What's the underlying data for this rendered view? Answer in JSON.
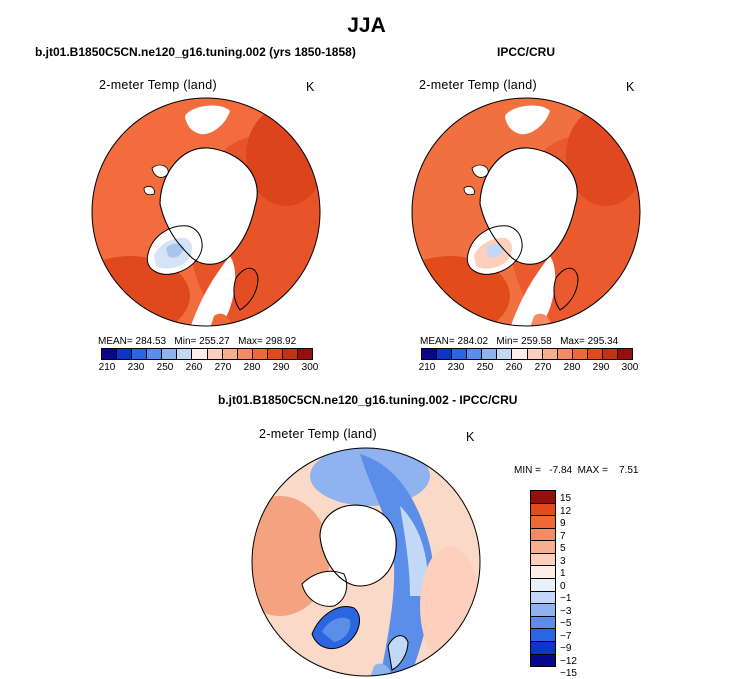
{
  "page": {
    "title": "JJA"
  },
  "colors": {
    "scale": [
      "#08088c",
      "#0d35c8",
      "#2a66e0",
      "#5a8ee8",
      "#8fb3ef",
      "#c2d8f6",
      "#fdeee6",
      "#fcd0bc",
      "#f9ae90",
      "#f68a62",
      "#ef6838",
      "#e24c1c",
      "#c33414",
      "#95100d"
    ],
    "diff_scale": [
      "#08088c",
      "#0d35c8",
      "#2a66e0",
      "#5a8ee8",
      "#8fb3ef",
      "#c2d8f6",
      "#e9f1fb",
      "#fdeee6",
      "#fcd0bc",
      "#f9ae90",
      "#f68a62",
      "#ef6838",
      "#e24c1c",
      "#95100d"
    ]
  },
  "panels": [
    {
      "heading": "b.jt01.B1850C5CN.ne120_g16.tuning.002 (yrs 1850-1858)",
      "variable": "2-meter Temp (land)",
      "units": "K",
      "stats": "MEAN= 284.53   Min= 255.27   Max= 298.92",
      "ticks": [
        "210",
        "230",
        "250",
        "260",
        "270",
        "280",
        "290",
        "300"
      ]
    },
    {
      "heading": "IPCC/CRU",
      "variable": "2-meter Temp (land)",
      "units": "K",
      "stats": "MEAN= 284.02   Min= 259.58   Max= 295.34",
      "ticks": [
        "210",
        "230",
        "250",
        "260",
        "270",
        "280",
        "290",
        "300"
      ]
    }
  ],
  "difference": {
    "heading": "b.jt01.B1850C5CN.ne120_g16.tuning.002 - IPCC/CRU",
    "variable": "2-meter Temp (land)",
    "units": "K",
    "stats": "MIN =   -7.84  MAX =    7.51",
    "labels": [
      "15",
      "12",
      "9",
      "7",
      "5",
      "3",
      "1",
      "0",
      "−1",
      "−3",
      "−5",
      "−7",
      "−9",
      "−12",
      "−15"
    ]
  }
}
